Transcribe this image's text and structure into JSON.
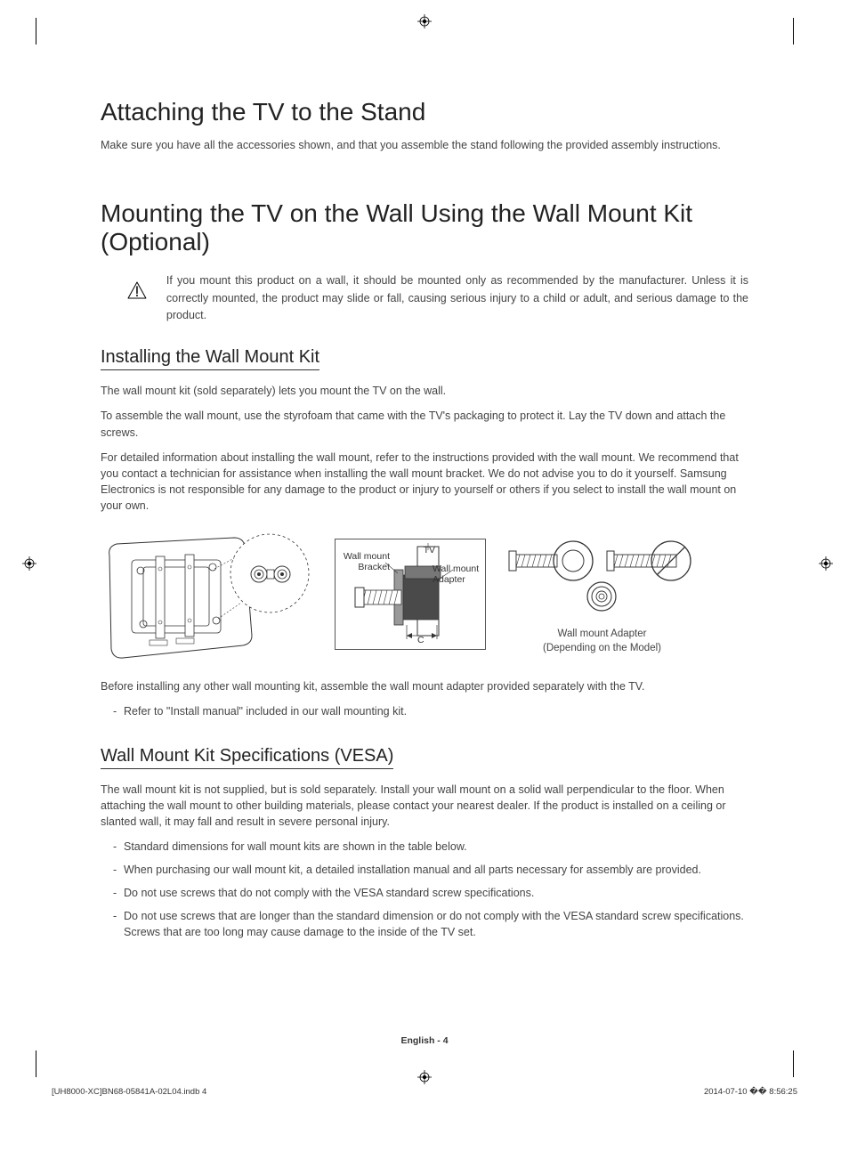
{
  "h1_attach": "Attaching the TV to the Stand",
  "p_attach": "Make sure you have all the accessories shown, and that you assemble the stand following the provided assembly instructions.",
  "h1_mount": "Mounting the TV on the Wall Using the Wall Mount Kit (Optional)",
  "warning": "If you mount this product on a wall, it should be mounted only as recommended by the manufacturer. Unless it is correctly mounted, the product may slide or fall, causing serious injury to a child or adult, and serious damage to the product.",
  "h2_install": "Installing the Wall Mount Kit",
  "p_install_1": "The wall mount kit (sold separately) lets you mount the TV on the wall.",
  "p_install_2": "To assemble the wall mount, use the styrofoam that came with the TV's packaging to protect it. Lay the TV down and attach the screws.",
  "p_install_3": "For detailed information about installing the wall mount, refer to the instructions provided with the wall mount. We recommend that you contact a technician for assistance when installing the wall mount bracket. We do not advise you to do it yourself. Samsung Electronics is not responsible for any damage to the product or injury to yourself or others if you select to install the wall mount on your own.",
  "d2_tv": "TV",
  "d2_bracket": "Wall mount Bracket",
  "d2_adapter": "Wall mount Adapter",
  "d2_c": "C",
  "d3_caption1": "Wall mount Adapter",
  "d3_caption2": "(Depending on the Model)",
  "p_before": "Before installing any other wall mounting kit, assemble the wall mount adapter provided separately with the TV.",
  "li_refer": "Refer to \"Install manual\" included in our wall mounting kit.",
  "h2_vesa": "Wall Mount Kit Specifications (VESA)",
  "p_vesa": "The wall mount kit is not supplied, but is sold separately. Install your wall mount on a solid wall perpendicular to the floor. When attaching the wall mount to other building materials, please contact your nearest dealer. If the product is installed on a ceiling or slanted wall, it may fall and result in severe personal injury.",
  "vesa_list": [
    "Standard dimensions for wall mount kits are shown in the table below.",
    "When purchasing our wall mount kit, a detailed installation manual and all parts necessary for assembly are provided.",
    "Do not use screws that do not comply with the VESA standard screw specifications.",
    "Do not use screws that are longer than the standard dimension or do not comply with the VESA standard screw specifications. Screws that are too long may cause damage to the inside of the TV set."
  ],
  "footer_page": "English - 4",
  "footer_left": "[UH8000-XC]BN68-05841A-02L04.indb   4",
  "footer_right": "2014-07-10   �� 8:56:25"
}
